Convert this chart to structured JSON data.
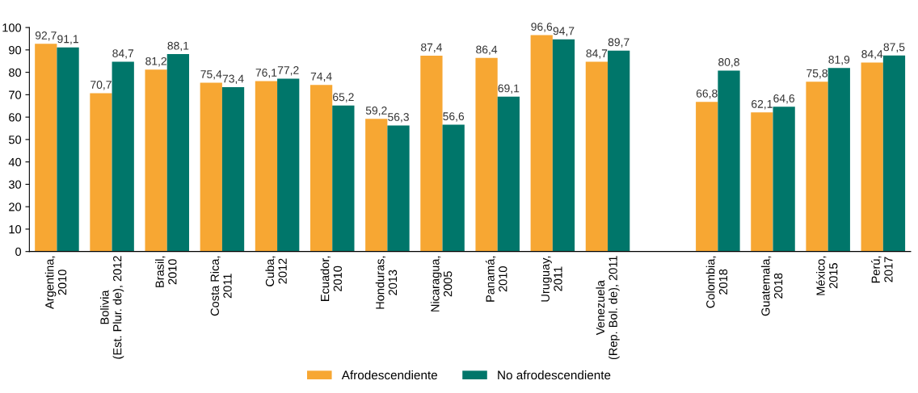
{
  "chart_data": {
    "type": "bar",
    "categories": [
      "Argentina,\n2010",
      "Bolivia\n(Est. Plur. de), 2012",
      "Brasil,\n2010",
      "Costa Rica,\n2011",
      "Cuba,\n2012",
      "Ecuador,\n2010",
      "Honduras,\n2013",
      "Nicaragua,\n2005",
      "Panamá,\n2010",
      "Uruguay,\n2011",
      "Venezuela\n(Rep. Bol. de), 2011",
      null,
      "Colombia,\n2018",
      "Guatemala,\n2018",
      "México,\n2015",
      "Perú,\n2017"
    ],
    "series": [
      {
        "name": "Afrodescendiente",
        "color": "#f7a733",
        "values": [
          92.7,
          70.7,
          81.2,
          75.4,
          76.1,
          74.4,
          59.2,
          87.4,
          86.4,
          96.6,
          84.7,
          null,
          66.8,
          62.1,
          75.8,
          84.4
        ],
        "value_labels": [
          "92,7",
          "70,7",
          "81,2",
          "75,4",
          "76,1",
          "74,4",
          "59,2",
          "87,4",
          "86,4",
          "96,6",
          "84,7",
          null,
          "66,8",
          "62,1",
          "75,8",
          "84,4"
        ]
      },
      {
        "name": "No afrodescendiente",
        "color": "#00766a",
        "values": [
          91.1,
          84.7,
          88.1,
          73.4,
          77.2,
          65.2,
          56.3,
          56.6,
          69.1,
          94.7,
          89.7,
          null,
          80.8,
          64.6,
          81.9,
          87.5
        ],
        "value_labels": [
          "91,1",
          "84,7",
          "88,1",
          "73,4",
          "77,2",
          "65,2",
          "56,3",
          "56,6",
          "69,1",
          "94,7",
          "89,7",
          null,
          "80,8",
          "64,6",
          "81,9",
          "87,5"
        ]
      }
    ],
    "ylim": [
      0,
      100
    ],
    "yticks": [
      0,
      10,
      20,
      30,
      40,
      50,
      60,
      70,
      80,
      90,
      100
    ],
    "legend": "bottom",
    "grid": false
  }
}
